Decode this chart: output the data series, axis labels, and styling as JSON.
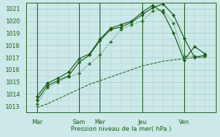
{
  "bg_color": "#cce8e8",
  "grid_color": "#aacccc",
  "line_color_dark": "#1a5c1a",
  "line_color_medium": "#2d7a2d",
  "xlabel": "Pression niveau de la mer( hPa )",
  "ylim": [
    1012.5,
    1021.5
  ],
  "yticks": [
    1013,
    1014,
    1015,
    1016,
    1017,
    1018,
    1019,
    1020,
    1021
  ],
  "xlim": [
    0,
    108
  ],
  "xtick_positions": [
    6,
    30,
    42,
    66,
    90
  ],
  "xtick_labels": [
    "Mar",
    "Sam",
    "Mer",
    "Jeu",
    "Ven"
  ],
  "vline_positions": [
    6,
    30,
    42,
    66,
    90
  ],
  "series1_x": [
    6,
    12,
    18,
    24,
    30,
    36,
    42,
    48,
    54,
    60,
    66,
    72,
    78,
    84,
    90,
    96,
    102
  ],
  "series1_y": [
    1012.9,
    1013.2,
    1013.6,
    1014.0,
    1014.4,
    1014.8,
    1015.1,
    1015.4,
    1015.7,
    1016.0,
    1016.3,
    1016.5,
    1016.7,
    1016.8,
    1016.9,
    1017.0,
    1017.0
  ],
  "series2_x": [
    6,
    12,
    18,
    24,
    30,
    36,
    42,
    48,
    54,
    60,
    66,
    72,
    78,
    84,
    90,
    96,
    102
  ],
  "series2_y": [
    1013.2,
    1014.5,
    1015.0,
    1015.4,
    1015.7,
    1016.5,
    1017.2,
    1018.3,
    1019.3,
    1019.7,
    1020.0,
    1020.8,
    1020.9,
    1019.8,
    1017.1,
    1017.1,
    1017.1
  ],
  "series3_x": [
    6,
    12,
    18,
    24,
    30,
    36,
    42,
    48,
    54,
    60,
    66,
    72,
    78,
    84,
    90,
    96,
    102
  ],
  "series3_y": [
    1013.5,
    1014.7,
    1015.1,
    1015.5,
    1016.6,
    1017.2,
    1018.4,
    1019.3,
    1019.5,
    1019.9,
    1020.5,
    1021.1,
    1021.4,
    1020.5,
    1018.6,
    1017.0,
    1017.2
  ],
  "series4_x": [
    6,
    12,
    18,
    24,
    30,
    36,
    42,
    48,
    54,
    60,
    66,
    72,
    78,
    84,
    90,
    96,
    102
  ],
  "series4_y": [
    1013.8,
    1014.9,
    1015.3,
    1015.8,
    1016.9,
    1017.3,
    1018.5,
    1019.4,
    1019.7,
    1020.0,
    1020.7,
    1021.3,
    1020.7,
    1019.0,
    1016.8,
    1017.9,
    1017.3
  ]
}
